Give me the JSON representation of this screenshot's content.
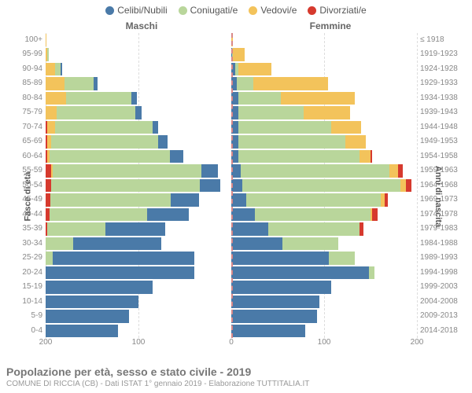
{
  "legend": [
    {
      "label": "Celibi/Nubili",
      "color": "#4a7aa8"
    },
    {
      "label": "Coniugati/e",
      "color": "#b9d69b"
    },
    {
      "label": "Vedovi/e",
      "color": "#f3c35b"
    },
    {
      "label": "Divorziati/e",
      "color": "#d63a2e"
    }
  ],
  "side_labels": {
    "male": "Maschi",
    "female": "Femmine"
  },
  "ylabel_left": "Fasce di età",
  "ylabel_right": "Anni di nascita",
  "x_max": 200,
  "x_ticks": [
    200,
    100,
    0,
    100,
    200
  ],
  "colors": {
    "celibi": "#4a7aa8",
    "coniugati": "#b9d69b",
    "vedovi": "#f3c35b",
    "divorziati": "#d63a2e",
    "grid": "#dddddd",
    "center": "#d98888",
    "text": "#888888"
  },
  "rows": [
    {
      "age": "100+",
      "year": "≤ 1918",
      "m": {
        "c": 0,
        "co": 0,
        "v": 1,
        "d": 0
      },
      "f": {
        "c": 0,
        "co": 0,
        "v": 2,
        "d": 0
      }
    },
    {
      "age": "95-99",
      "year": "1919-1923",
      "m": {
        "c": 0,
        "co": 1,
        "v": 2,
        "d": 0
      },
      "f": {
        "c": 1,
        "co": 1,
        "v": 12,
        "d": 0
      }
    },
    {
      "age": "90-94",
      "year": "1924-1928",
      "m": {
        "c": 2,
        "co": 6,
        "v": 10,
        "d": 0
      },
      "f": {
        "c": 4,
        "co": 4,
        "v": 35,
        "d": 0
      }
    },
    {
      "age": "85-89",
      "year": "1929-1933",
      "m": {
        "c": 4,
        "co": 32,
        "v": 20,
        "d": 0
      },
      "f": {
        "c": 6,
        "co": 18,
        "v": 80,
        "d": 0
      }
    },
    {
      "age": "80-84",
      "year": "1934-1938",
      "m": {
        "c": 6,
        "co": 70,
        "v": 22,
        "d": 0
      },
      "f": {
        "c": 8,
        "co": 45,
        "v": 80,
        "d": 0
      }
    },
    {
      "age": "75-79",
      "year": "1939-1943",
      "m": {
        "c": 6,
        "co": 85,
        "v": 12,
        "d": 0
      },
      "f": {
        "c": 8,
        "co": 70,
        "v": 50,
        "d": 0
      }
    },
    {
      "age": "70-74",
      "year": "1944-1948",
      "m": {
        "c": 6,
        "co": 105,
        "v": 8,
        "d": 2
      },
      "f": {
        "c": 8,
        "co": 100,
        "v": 32,
        "d": 0
      }
    },
    {
      "age": "65-69",
      "year": "1949-1953",
      "m": {
        "c": 10,
        "co": 115,
        "v": 4,
        "d": 2
      },
      "f": {
        "c": 8,
        "co": 115,
        "v": 22,
        "d": 0
      }
    },
    {
      "age": "60-64",
      "year": "1954-1958",
      "m": {
        "c": 14,
        "co": 130,
        "v": 2,
        "d": 2
      },
      "f": {
        "c": 8,
        "co": 130,
        "v": 12,
        "d": 2
      }
    },
    {
      "age": "55-59",
      "year": "1959-1963",
      "m": {
        "c": 18,
        "co": 160,
        "v": 2,
        "d": 6
      },
      "f": {
        "c": 10,
        "co": 160,
        "v": 10,
        "d": 5
      }
    },
    {
      "age": "50-54",
      "year": "1964-1968",
      "m": {
        "c": 22,
        "co": 160,
        "v": 0,
        "d": 6
      },
      "f": {
        "c": 12,
        "co": 170,
        "v": 6,
        "d": 6
      }
    },
    {
      "age": "45-49",
      "year": "1969-1973",
      "m": {
        "c": 30,
        "co": 130,
        "v": 0,
        "d": 5
      },
      "f": {
        "c": 16,
        "co": 145,
        "v": 4,
        "d": 4
      }
    },
    {
      "age": "40-44",
      "year": "1974-1978",
      "m": {
        "c": 45,
        "co": 105,
        "v": 0,
        "d": 4
      },
      "f": {
        "c": 25,
        "co": 125,
        "v": 2,
        "d": 6
      }
    },
    {
      "age": "35-39",
      "year": "1979-1983",
      "m": {
        "c": 65,
        "co": 62,
        "v": 0,
        "d": 2
      },
      "f": {
        "c": 40,
        "co": 98,
        "v": 0,
        "d": 4
      }
    },
    {
      "age": "30-34",
      "year": "1984-1988",
      "m": {
        "c": 95,
        "co": 30,
        "v": 0,
        "d": 0
      },
      "f": {
        "c": 55,
        "co": 60,
        "v": 0,
        "d": 0
      }
    },
    {
      "age": "25-29",
      "year": "1989-1993",
      "m": {
        "c": 152,
        "co": 8,
        "v": 0,
        "d": 0
      },
      "f": {
        "c": 105,
        "co": 28,
        "v": 0,
        "d": 0
      }
    },
    {
      "age": "20-24",
      "year": "1994-1998",
      "m": {
        "c": 160,
        "co": 0,
        "v": 0,
        "d": 0
      },
      "f": {
        "c": 148,
        "co": 6,
        "v": 0,
        "d": 0
      }
    },
    {
      "age": "15-19",
      "year": "1999-2003",
      "m": {
        "c": 115,
        "co": 0,
        "v": 0,
        "d": 0
      },
      "f": {
        "c": 108,
        "co": 0,
        "v": 0,
        "d": 0
      }
    },
    {
      "age": "10-14",
      "year": "2004-2008",
      "m": {
        "c": 100,
        "co": 0,
        "v": 0,
        "d": 0
      },
      "f": {
        "c": 95,
        "co": 0,
        "v": 0,
        "d": 0
      }
    },
    {
      "age": "5-9",
      "year": "2009-2013",
      "m": {
        "c": 90,
        "co": 0,
        "v": 0,
        "d": 0
      },
      "f": {
        "c": 92,
        "co": 0,
        "v": 0,
        "d": 0
      }
    },
    {
      "age": "0-4",
      "year": "2014-2018",
      "m": {
        "c": 78,
        "co": 0,
        "v": 0,
        "d": 0
      },
      "f": {
        "c": 80,
        "co": 0,
        "v": 0,
        "d": 0
      }
    }
  ],
  "footer": {
    "title": "Popolazione per età, sesso e stato civile - 2019",
    "sub": "COMUNE DI RICCIA (CB) - Dati ISTAT 1° gennaio 2019 - Elaborazione TUTTITALIA.IT"
  }
}
